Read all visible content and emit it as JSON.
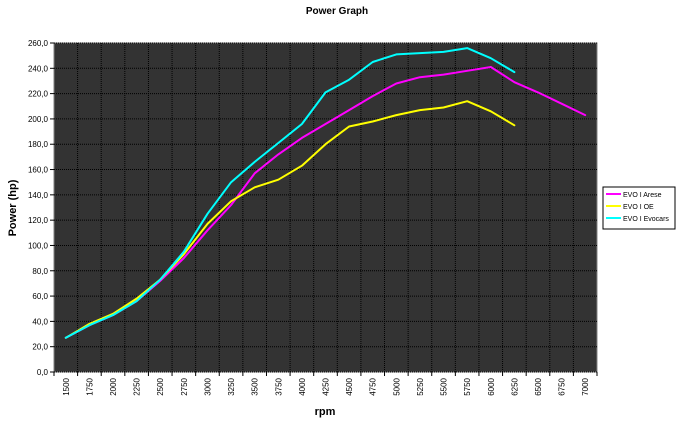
{
  "chart_data": {
    "type": "line",
    "title": "Power Graph",
    "xlabel": "rpm",
    "ylabel": "Power (hp)",
    "xlim": [
      1500,
      7000
    ],
    "ylim": [
      0,
      260
    ],
    "x_ticks": [
      "1500",
      "1750",
      "2000",
      "2250",
      "2500",
      "2750",
      "3000",
      "3250",
      "3500",
      "3750",
      "4000",
      "4250",
      "4500",
      "4750",
      "5000",
      "5250",
      "5500",
      "5750",
      "6000",
      "6250",
      "6500",
      "6750",
      "7000"
    ],
    "y_ticks": [
      "0,0",
      "20,0",
      "40,0",
      "60,0",
      "80,0",
      "100,0",
      "120,0",
      "140,0",
      "160,0",
      "180,0",
      "200,0",
      "220,0",
      "240,0",
      "260,0"
    ],
    "grid": true,
    "legend_position": "right",
    "plot_background": "#333333",
    "series": [
      {
        "name": "EVO I Arese",
        "color": "#ff00ff",
        "x": [
          1500,
          1750,
          2000,
          2250,
          2500,
          2750,
          3000,
          3250,
          3500,
          3750,
          4000,
          4250,
          4500,
          4750,
          5000,
          5250,
          5500,
          5750,
          6000,
          6250,
          6500,
          6750,
          7000
        ],
        "y": [
          27,
          37,
          45,
          56,
          72,
          90,
          112,
          132,
          157,
          172,
          185,
          196,
          207,
          218,
          228,
          233,
          235,
          238,
          241,
          229,
          221,
          212,
          203
        ]
      },
      {
        "name": "EVO I OE",
        "color": "#ffff00",
        "x": [
          1500,
          1750,
          2000,
          2250,
          2500,
          2750,
          3000,
          3250,
          3500,
          3750,
          4000,
          4250,
          4500,
          4750,
          5000,
          5250,
          5500,
          5750,
          6000,
          6250
        ],
        "y": [
          27,
          38,
          46,
          58,
          73,
          93,
          117,
          135,
          146,
          152,
          163,
          180,
          194,
          198,
          203,
          207,
          209,
          214,
          206,
          195
        ]
      },
      {
        "name": "EVO I Evocars",
        "color": "#00ffff",
        "x": [
          1500,
          1750,
          2000,
          2250,
          2500,
          2750,
          3000,
          3250,
          3500,
          3750,
          4000,
          4250,
          4500,
          4750,
          5000,
          5250,
          5500,
          5750,
          6000,
          6250
        ],
        "y": [
          27,
          37,
          45,
          56,
          73,
          95,
          125,
          150,
          166,
          181,
          196,
          221,
          231,
          245,
          251,
          252,
          253,
          256,
          248,
          237
        ]
      }
    ]
  }
}
